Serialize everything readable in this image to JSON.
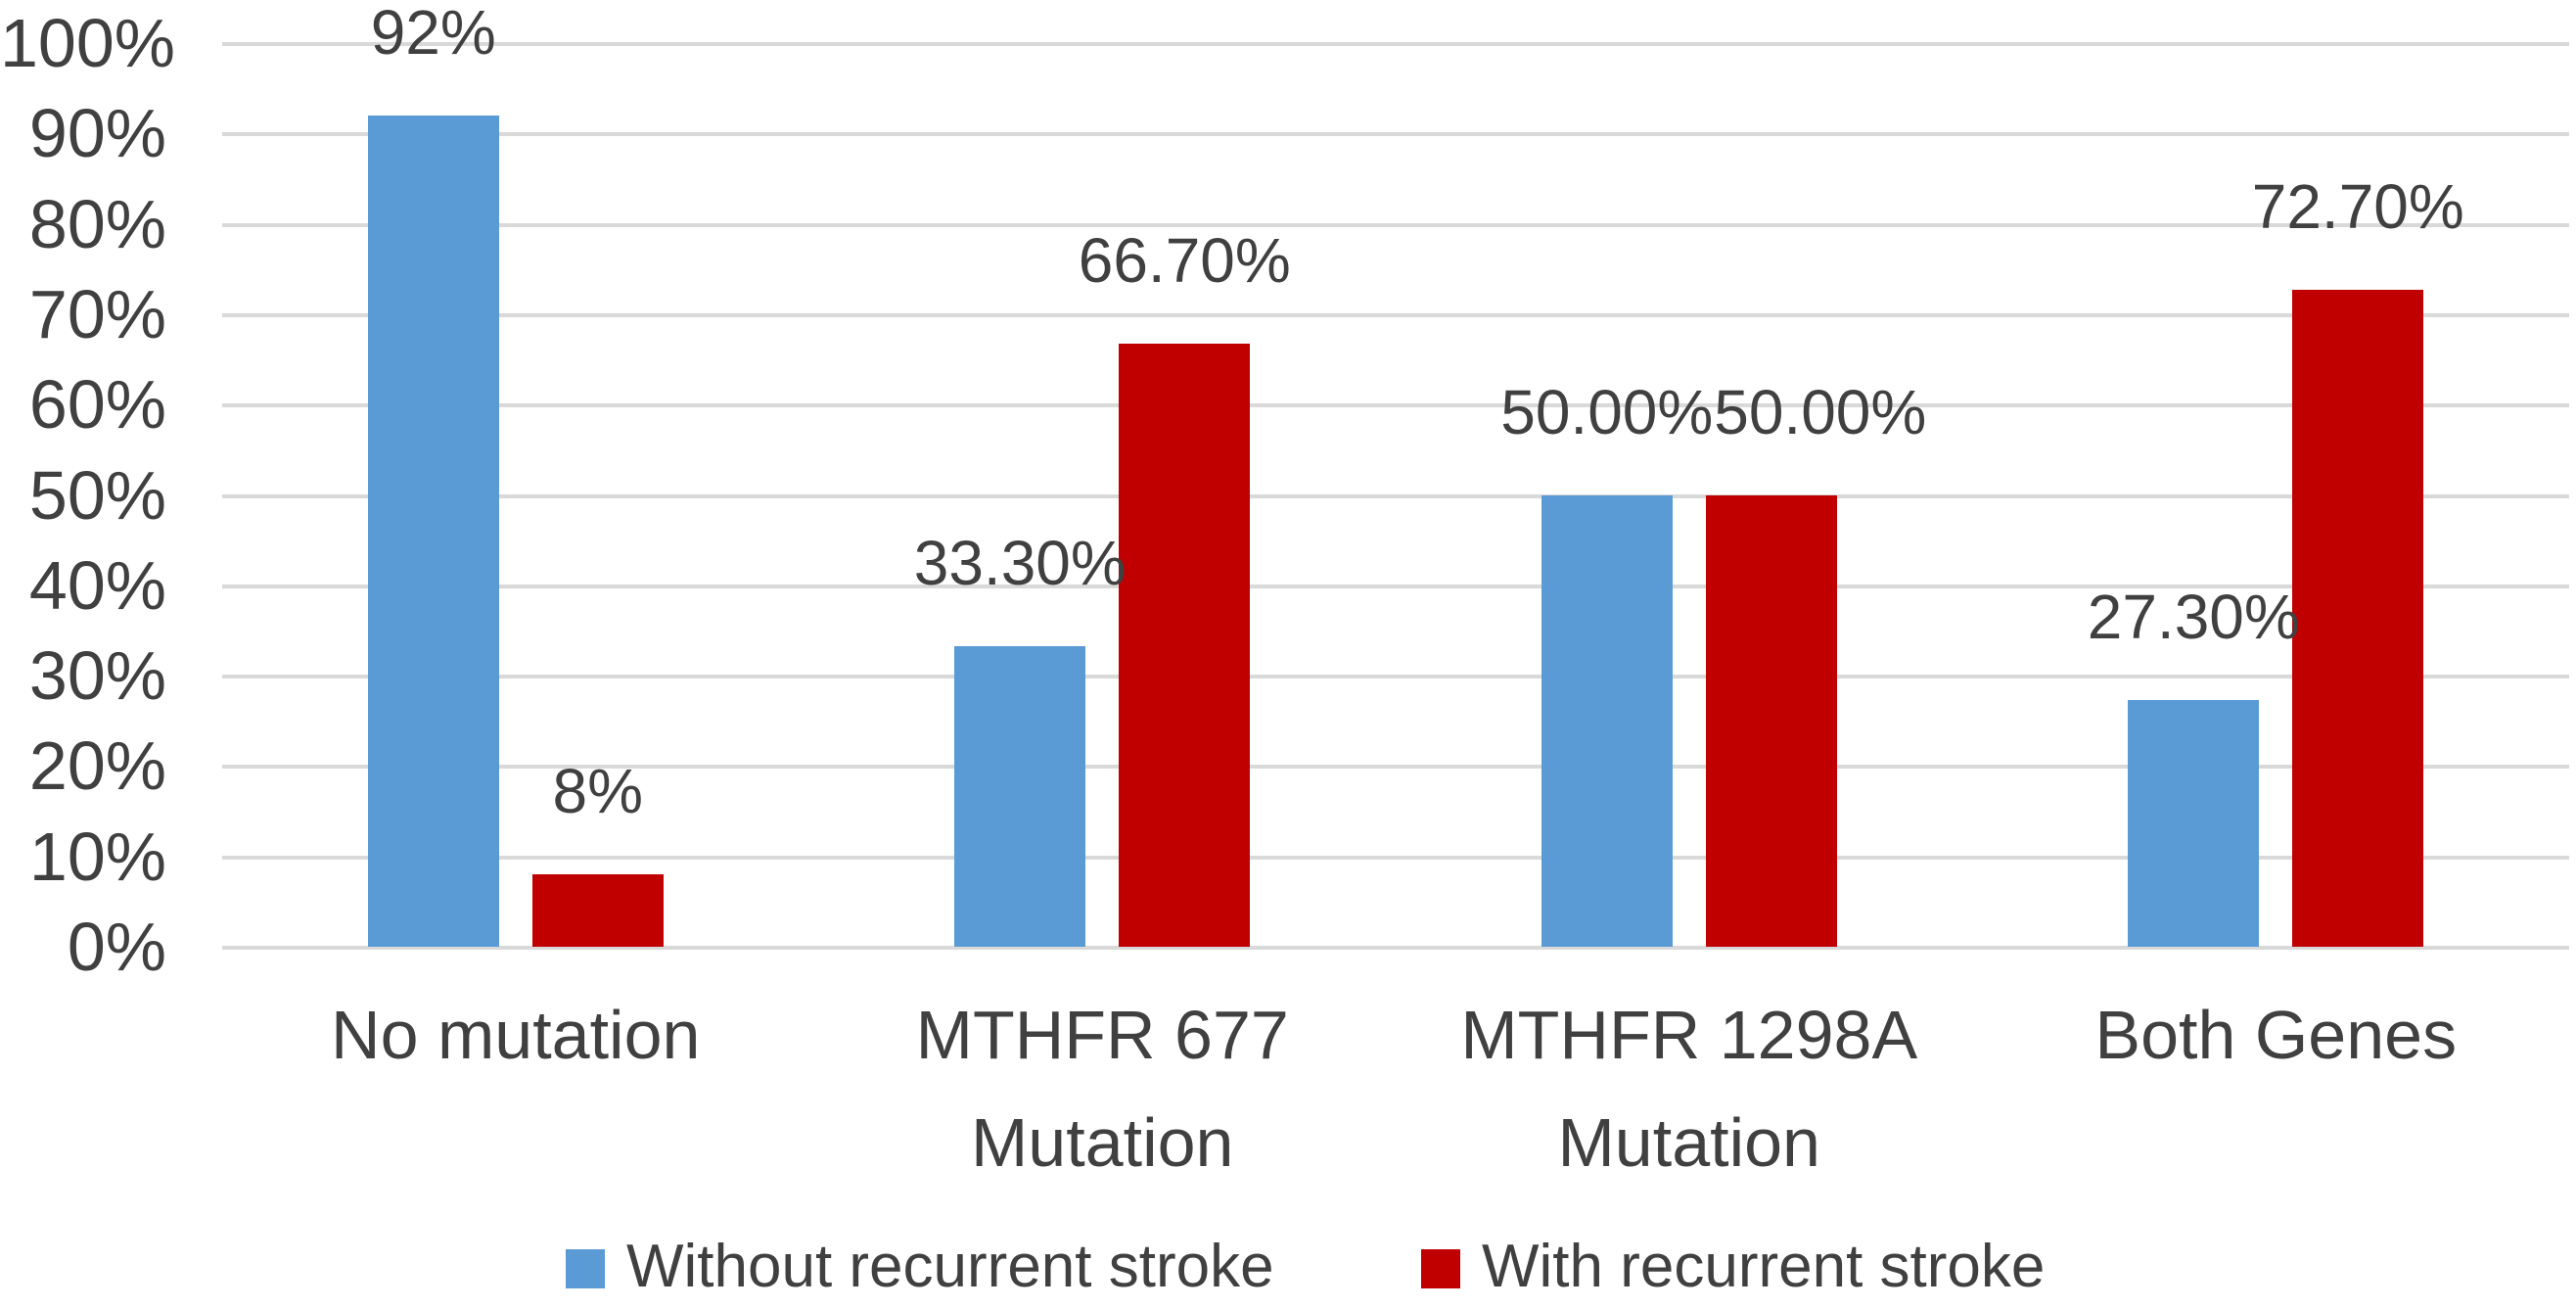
{
  "chart_data": {
    "type": "bar",
    "title": "",
    "categories": [
      "No mutation",
      "MTHFR 677 Mutation",
      "MTHFR 1298A Mutation",
      "Both Genes"
    ],
    "category_label_lines": [
      [
        "No mutation"
      ],
      [
        "MTHFR 677",
        "Mutation"
      ],
      [
        "MTHFR 1298A",
        "Mutation"
      ],
      [
        "Both Genes"
      ]
    ],
    "series": [
      {
        "name": "Without recurrent stroke",
        "color": "#5B9BD5",
        "values": [
          92,
          33.3,
          50,
          27.3
        ],
        "data_labels": [
          "92%",
          "33.30%",
          "50.00%",
          "27.30%"
        ]
      },
      {
        "name": "With recurrent stroke",
        "color": "#C00000",
        "values": [
          8,
          66.7,
          50,
          72.7
        ],
        "data_labels": [
          "8%",
          "66.70%",
          "50.00%",
          "72.70%"
        ]
      }
    ],
    "y_axis": {
      "min": 0,
      "max": 100,
      "tick_step": 10,
      "tick_labels": [
        "0%",
        "10%",
        "20%",
        "30%",
        "40%",
        "50%",
        "60%",
        "70%",
        "80%",
        "90%",
        "100%"
      ],
      "grid": true
    },
    "legend": {
      "position": "bottom",
      "entries": [
        "Without recurrent stroke",
        "With recurrent stroke"
      ]
    },
    "colors": {
      "grid": "#D9D9D9",
      "text": "#404040",
      "background": "#FFFFFF"
    }
  }
}
